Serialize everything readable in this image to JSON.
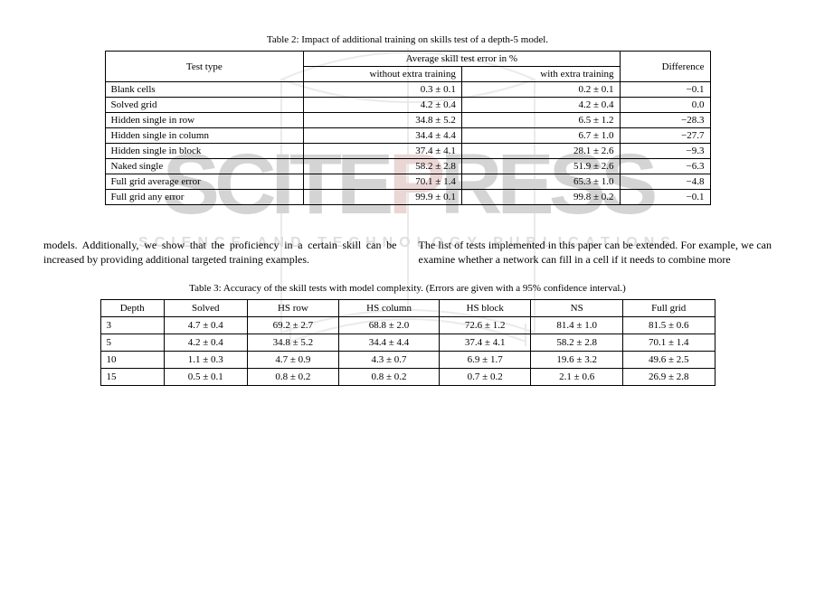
{
  "watermark": {
    "brand": "SCITEPRESS",
    "tagline": "SCIENCE AND TECHNOLOGY PUBLICATIONS"
  },
  "table1": {
    "caption": "Table 2: Impact of additional training on skills test of a depth-5 model.",
    "header_skill": "Test type",
    "header_group": "Average skill test error in %",
    "header_without": "without extra training",
    "header_with": "with extra training",
    "header_diff": "Difference",
    "rows": [
      {
        "skill": "Blank cells",
        "wo": "0.3 ± 0.1",
        "w": "0.2 ± 0.1",
        "diff": "−0.1"
      },
      {
        "skill": "Solved grid",
        "wo": "4.2 ± 0.4",
        "w": "4.2 ± 0.4",
        "diff": "0.0"
      },
      {
        "skill": "Hidden single in row",
        "wo": "34.8 ± 5.2",
        "w": "6.5 ± 1.2",
        "diff": "−28.3"
      },
      {
        "skill": "Hidden single in column",
        "wo": "34.4 ± 4.4",
        "w": "6.7 ± 1.0",
        "diff": "−27.7"
      },
      {
        "skill": "Hidden single in block",
        "wo": "37.4 ± 4.1",
        "w": "28.1 ± 2.6",
        "diff": "−9.3"
      },
      {
        "skill": "Naked single",
        "wo": "58.2 ± 2.8",
        "w": "51.9 ± 2.6",
        "diff": "−6.3"
      },
      {
        "skill": "Full grid average error",
        "wo": "70.1 ± 1.4",
        "w": "65.3 ± 1.0",
        "diff": "−4.8"
      },
      {
        "skill": "Full grid any error",
        "wo": "99.9 ± 0.1",
        "w": "99.8 ± 0.2",
        "diff": "−0.1"
      }
    ]
  },
  "body": {
    "left": "models. Additionally, we show that the proficiency in a certain skill can be increased by providing additional targeted training examples.",
    "right": "The list of tests implemented in this paper can be extended. For example, we can examine whether a network can fill in a cell if it needs to combine more"
  },
  "table2": {
    "caption": "Table 3: Accuracy of the skill tests with model complexity. (Errors are given with a 95% confidence interval.)",
    "columns": [
      "Depth",
      "Solved",
      "HS row",
      "HS column",
      "HS block",
      "NS",
      "Full grid"
    ],
    "rows": [
      {
        "depth": "3",
        "vals": [
          "4.7 ± 0.4",
          "69.2 ± 2.7",
          "68.8 ± 2.0",
          "72.6 ± 1.2",
          "81.4 ± 1.0",
          "81.5 ± 0.6"
        ]
      },
      {
        "depth": "5",
        "vals": [
          "4.2 ± 0.4",
          "34.8 ± 5.2",
          "34.4 ± 4.4",
          "37.4 ± 4.1",
          "58.2 ± 2.8",
          "70.1 ± 1.4"
        ]
      },
      {
        "depth": "10",
        "vals": [
          "1.1 ± 0.3",
          "4.7 ± 0.9",
          "4.3 ± 0.7",
          "6.9 ± 1.7",
          "19.6 ± 3.2",
          "49.6 ± 2.5"
        ]
      },
      {
        "depth": "15",
        "vals": [
          "0.5 ± 0.1",
          "0.8 ± 0.2",
          "0.8 ± 0.2",
          "0.7 ± 0.2",
          "2.1 ± 0.6",
          "26.9 ± 2.8"
        ]
      }
    ]
  }
}
